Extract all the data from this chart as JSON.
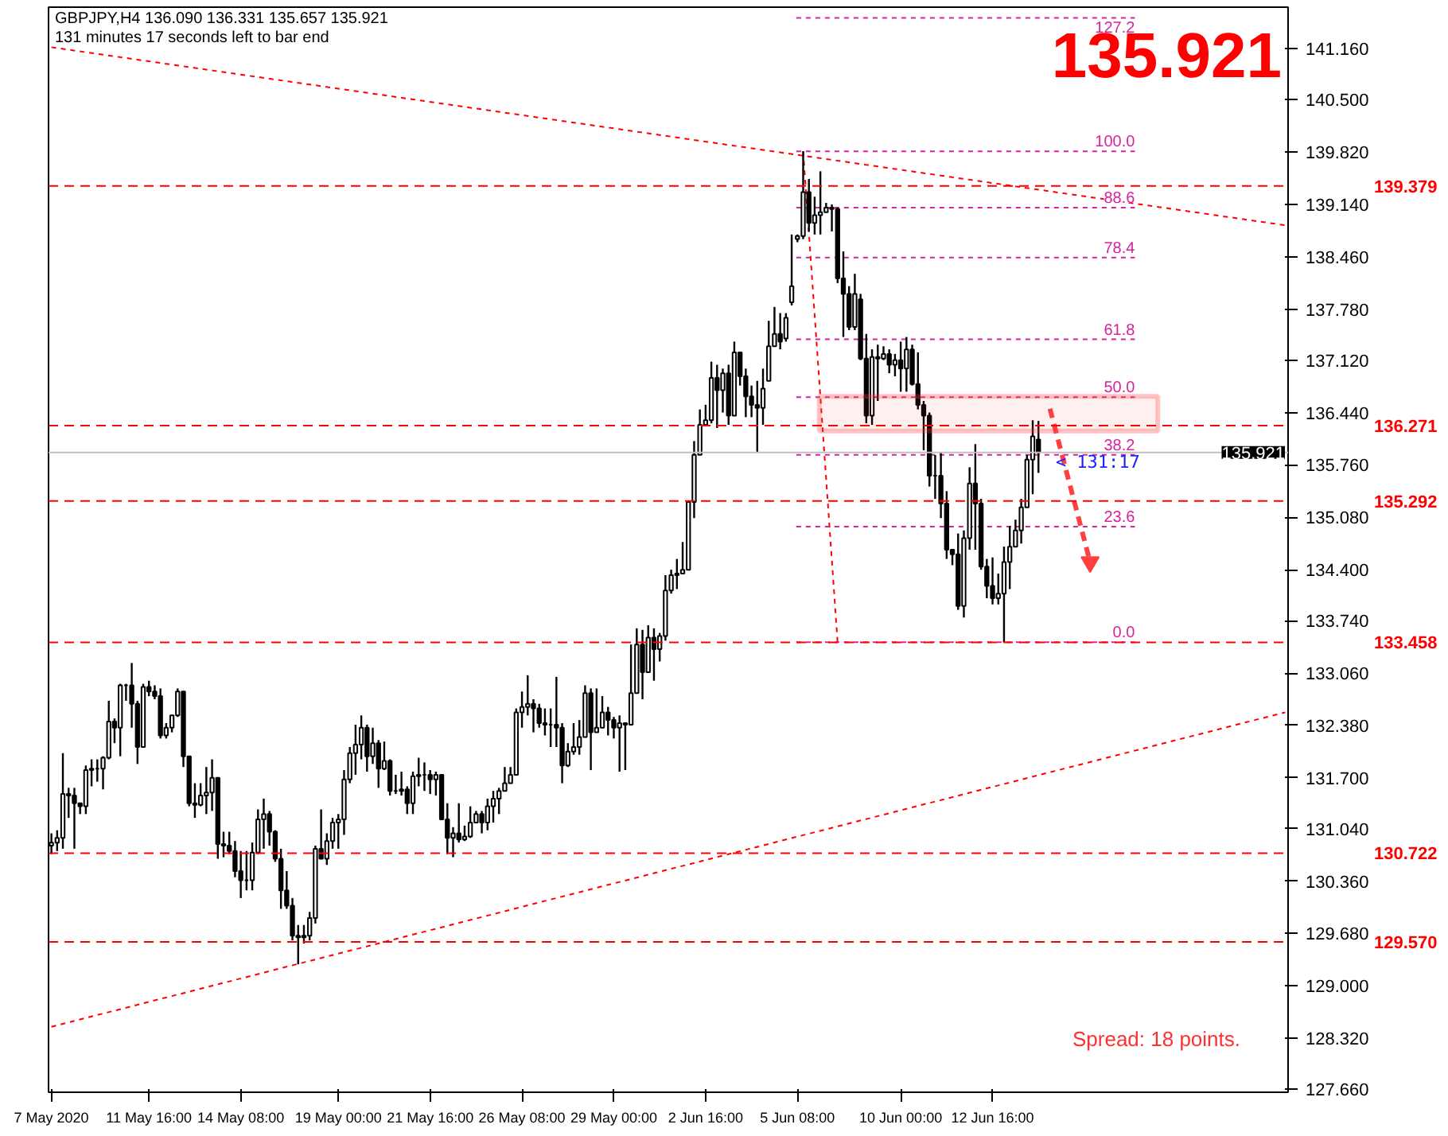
{
  "chart_data": {
    "type": "candlestick",
    "title": "GBPJPY,H4 136.090 136.331 135.657 135.921",
    "subtitle": "131 minutes 17 seconds left to bar end",
    "categories": [
      "7 May 2020",
      null,
      null,
      null,
      null,
      null,
      null,
      null,
      null,
      null,
      null,
      null,
      null,
      null,
      null,
      null,
      null,
      "11 May 16:00",
      null,
      null,
      null,
      null,
      null,
      null,
      null,
      null,
      null,
      null,
      null,
      null,
      null,
      null,
      null,
      "14 May 08:00",
      null,
      null,
      null,
      null,
      null,
      null,
      null,
      null,
      null,
      null,
      null,
      null,
      null,
      null,
      null,
      null,
      "19 May 00:00",
      null,
      null,
      null,
      null,
      null,
      null,
      null,
      null,
      null,
      null,
      null,
      null,
      null,
      null,
      null,
      "21 May 16:00",
      null,
      null,
      null,
      null,
      null,
      null,
      null,
      null,
      null,
      null,
      null,
      null,
      null,
      null,
      null,
      "26 May 08:00",
      null,
      null,
      null,
      null,
      null,
      null,
      null,
      null,
      null,
      null,
      null,
      null,
      null,
      null,
      null,
      "29 May 00:00",
      null,
      null,
      null,
      null,
      null,
      null,
      null,
      null,
      null,
      null,
      null,
      null,
      null,
      null,
      null,
      "2 Jun 16:00",
      null,
      null,
      null,
      null,
      null,
      null,
      null,
      null,
      null,
      null,
      null,
      null,
      null,
      null,
      null,
      "5 Jun 08:00",
      null,
      null,
      null,
      null,
      null,
      null,
      null,
      null,
      null,
      null,
      null,
      null,
      null,
      null,
      null,
      null,
      null,
      "10 Jun 00:00",
      null,
      null,
      null,
      null,
      null,
      null,
      null,
      null,
      null,
      null,
      null,
      null,
      null,
      null,
      null,
      "12 Jun 16:00",
      null,
      null,
      null,
      null,
      null,
      null,
      null,
      null,
      null,
      null,
      null,
      null,
      null,
      null,
      null,
      null,
      null,
      null,
      null,
      null,
      null,
      null,
      null,
      null,
      null,
      null,
      null,
      null,
      null,
      null,
      null,
      null,
      null,
      null,
      null,
      null,
      null,
      null,
      null,
      null,
      null,
      null,
      null,
      null,
      null,
      null,
      null,
      null,
      null,
      null,
      null
    ],
    "ohlc": [
      [
        130.82,
        130.98,
        130.71,
        130.86
      ],
      [
        130.86,
        131.02,
        130.75,
        130.92
      ],
      [
        130.92,
        132.02,
        130.78,
        131.49
      ],
      [
        131.49,
        131.57,
        131.18,
        131.47
      ],
      [
        131.47,
        131.57,
        130.78,
        131.37
      ],
      [
        131.37,
        131.37,
        131.23,
        131.33
      ],
      [
        131.33,
        131.86,
        131.23,
        131.8
      ],
      [
        131.8,
        131.94,
        131.59,
        131.82
      ],
      [
        131.82,
        131.94,
        131.65,
        131.82
      ],
      [
        131.82,
        131.98,
        131.55,
        131.96
      ],
      [
        131.96,
        132.7,
        131.94,
        132.43
      ],
      [
        132.43,
        132.47,
        132.15,
        132.35
      ],
      [
        132.35,
        132.92,
        131.98,
        132.9
      ],
      [
        132.9,
        132.92,
        132.7,
        132.9
      ],
      [
        132.9,
        133.19,
        132.35,
        132.66
      ],
      [
        132.66,
        132.7,
        131.88,
        132.1
      ],
      [
        132.1,
        132.92,
        132.1,
        132.88
      ],
      [
        132.88,
        132.96,
        132.76,
        132.82
      ],
      [
        132.82,
        132.9,
        132.72,
        132.76
      ],
      [
        132.76,
        132.86,
        132.21,
        132.25
      ],
      [
        132.25,
        132.41,
        132.21,
        132.35
      ],
      [
        132.35,
        132.51,
        132.29,
        132.51
      ],
      [
        132.51,
        132.86,
        132.49,
        132.82
      ],
      [
        132.82,
        132.82,
        131.84,
        131.98
      ],
      [
        131.98,
        131.98,
        131.33,
        131.37
      ],
      [
        131.37,
        131.63,
        131.18,
        131.35
      ],
      [
        131.35,
        131.63,
        131.33,
        131.47
      ],
      [
        131.47,
        131.84,
        131.23,
        131.51
      ],
      [
        131.51,
        131.94,
        131.27,
        131.7
      ],
      [
        131.7,
        131.7,
        130.65,
        130.84
      ],
      [
        130.84,
        131.0,
        130.67,
        130.82
      ],
      [
        130.82,
        131.0,
        130.71,
        130.75
      ],
      [
        130.75,
        130.88,
        130.41,
        130.49
      ],
      [
        130.49,
        130.75,
        130.14,
        130.37
      ],
      [
        130.37,
        130.75,
        130.24,
        130.37
      ],
      [
        130.37,
        130.86,
        130.24,
        130.73
      ],
      [
        130.73,
        131.29,
        130.71,
        131.16
      ],
      [
        131.16,
        131.43,
        130.78,
        131.23
      ],
      [
        131.23,
        131.27,
        130.82,
        131.0
      ],
      [
        131.0,
        131.02,
        130.61,
        130.65
      ],
      [
        130.65,
        130.78,
        130.0,
        130.24
      ],
      [
        130.24,
        130.49,
        130.0,
        130.04
      ],
      [
        130.04,
        130.14,
        129.59,
        129.65
      ],
      [
        129.65,
        129.79,
        129.28,
        129.63
      ],
      [
        129.63,
        129.79,
        129.55,
        129.65
      ],
      [
        129.65,
        129.96,
        129.59,
        129.88
      ],
      [
        129.88,
        130.82,
        129.81,
        130.78
      ],
      [
        130.78,
        131.29,
        130.65,
        130.65
      ],
      [
        130.65,
        130.98,
        130.57,
        130.88
      ],
      [
        130.88,
        131.18,
        130.78,
        131.12
      ],
      [
        131.12,
        131.23,
        130.78,
        131.16
      ],
      [
        131.16,
        131.8,
        130.96,
        131.68
      ],
      [
        131.68,
        132.1,
        131.63,
        132.02
      ],
      [
        132.02,
        132.39,
        131.74,
        132.13
      ],
      [
        132.13,
        132.51,
        131.94,
        132.35
      ],
      [
        132.35,
        132.39,
        131.78,
        131.98
      ],
      [
        131.98,
        132.35,
        131.88,
        132.15
      ],
      [
        132.15,
        132.19,
        131.57,
        131.82
      ],
      [
        131.82,
        132.17,
        131.8,
        131.92
      ],
      [
        131.92,
        131.94,
        131.47,
        131.53
      ],
      [
        131.53,
        131.74,
        131.49,
        131.53
      ],
      [
        131.53,
        131.78,
        131.47,
        131.55
      ],
      [
        131.55,
        131.59,
        131.23,
        131.37
      ],
      [
        131.37,
        131.78,
        131.23,
        131.72
      ],
      [
        131.72,
        131.96,
        131.59,
        131.74
      ],
      [
        131.74,
        131.9,
        131.53,
        131.74
      ],
      [
        131.74,
        131.8,
        131.49,
        131.68
      ],
      [
        131.68,
        131.78,
        131.47,
        131.74
      ],
      [
        131.74,
        131.74,
        131.16,
        131.16
      ],
      [
        131.16,
        131.37,
        130.71,
        130.92
      ],
      [
        130.92,
        131.06,
        130.67,
        130.98
      ],
      [
        130.98,
        131.37,
        130.86,
        130.9
      ],
      [
        130.9,
        131.08,
        130.88,
        130.94
      ],
      [
        130.94,
        131.33,
        130.92,
        131.12
      ],
      [
        131.12,
        131.27,
        131.12,
        131.23
      ],
      [
        131.23,
        131.27,
        130.98,
        131.12
      ],
      [
        131.12,
        131.43,
        131.02,
        131.33
      ],
      [
        131.33,
        131.53,
        131.12,
        131.43
      ],
      [
        131.43,
        131.57,
        131.23,
        131.53
      ],
      [
        131.53,
        131.84,
        131.53,
        131.63
      ],
      [
        131.63,
        131.84,
        131.63,
        131.74
      ],
      [
        131.74,
        132.6,
        131.74,
        132.55
      ],
      [
        132.55,
        132.82,
        132.35,
        132.62
      ],
      [
        132.62,
        133.03,
        132.51,
        132.66
      ],
      [
        132.66,
        132.72,
        132.29,
        132.6
      ],
      [
        132.6,
        132.66,
        132.35,
        132.41
      ],
      [
        132.41,
        132.6,
        132.25,
        132.39
      ],
      [
        132.39,
        132.6,
        132.1,
        132.39
      ],
      [
        132.39,
        133.01,
        132.1,
        132.35
      ],
      [
        132.35,
        132.41,
        131.63,
        131.86
      ],
      [
        131.86,
        132.15,
        131.84,
        132.04
      ],
      [
        132.04,
        132.41,
        132.0,
        132.1
      ],
      [
        132.1,
        132.45,
        132.0,
        132.23
      ],
      [
        132.23,
        132.9,
        132.23,
        132.8
      ],
      [
        132.8,
        132.86,
        131.8,
        132.29
      ],
      [
        132.29,
        132.86,
        132.29,
        132.35
      ],
      [
        132.35,
        132.76,
        132.35,
        132.55
      ],
      [
        132.55,
        132.62,
        132.25,
        132.45
      ],
      [
        132.45,
        132.49,
        132.21,
        132.35
      ],
      [
        132.35,
        132.51,
        131.78,
        132.41
      ],
      [
        132.41,
        132.41,
        131.8,
        132.39
      ],
      [
        132.39,
        133.43,
        132.39,
        132.8
      ],
      [
        132.8,
        133.64,
        132.8,
        133.43
      ],
      [
        133.43,
        133.62,
        132.72,
        133.07
      ],
      [
        133.07,
        133.68,
        133.07,
        133.52
      ],
      [
        133.52,
        133.64,
        132.96,
        133.37
      ],
      [
        133.37,
        133.58,
        133.21,
        133.54
      ],
      [
        133.54,
        134.33,
        133.48,
        134.13
      ],
      [
        134.13,
        134.4,
        134.09,
        134.33
      ],
      [
        134.33,
        134.54,
        134.15,
        134.35
      ],
      [
        134.35,
        134.76,
        134.35,
        134.4
      ],
      [
        134.4,
        135.28,
        134.4,
        135.28
      ],
      [
        135.28,
        136.07,
        135.07,
        135.89
      ],
      [
        135.89,
        136.48,
        135.89,
        136.28
      ],
      [
        136.28,
        136.54,
        136.28,
        136.34
      ],
      [
        136.34,
        137.1,
        136.3,
        136.89
      ],
      [
        136.89,
        137.06,
        136.24,
        136.73
      ],
      [
        136.73,
        137.01,
        136.44,
        136.95
      ],
      [
        136.95,
        137.06,
        136.28,
        136.4
      ],
      [
        136.4,
        137.36,
        136.4,
        137.22
      ],
      [
        137.22,
        137.22,
        136.79,
        136.91
      ],
      [
        136.91,
        137.01,
        136.38,
        136.65
      ],
      [
        136.65,
        136.79,
        136.38,
        136.54
      ],
      [
        136.54,
        136.85,
        135.93,
        136.5
      ],
      [
        136.5,
        137.01,
        136.28,
        136.75
      ],
      [
        136.85,
        137.63,
        136.85,
        137.3
      ],
      [
        137.3,
        137.81,
        137.3,
        137.46
      ],
      [
        137.46,
        137.73,
        137.26,
        137.36
      ],
      [
        137.4,
        137.73,
        137.36,
        137.67
      ],
      [
        137.87,
        138.75,
        137.83,
        138.08
      ],
      [
        138.69,
        138.75,
        138.65,
        138.73
      ],
      [
        138.73,
        139.83,
        138.69,
        139.3
      ],
      [
        139.3,
        139.47,
        138.79,
        138.9
      ],
      [
        138.9,
        139.24,
        138.75,
        139.0
      ],
      [
        139.0,
        139.57,
        138.75,
        139.04
      ],
      [
        139.04,
        139.16,
        139.04,
        139.1
      ],
      [
        139.1,
        139.14,
        138.79,
        139.08
      ],
      [
        139.08,
        139.1,
        138.12,
        138.18
      ],
      [
        138.18,
        138.53,
        137.42,
        137.98
      ],
      [
        137.98,
        138.08,
        137.51,
        137.55
      ],
      [
        137.55,
        138.24,
        137.51,
        137.98
      ],
      [
        137.91,
        137.98,
        137.12,
        137.14
      ],
      [
        137.14,
        137.46,
        136.3,
        136.4
      ],
      [
        136.4,
        137.26,
        136.28,
        137.16
      ],
      [
        137.16,
        137.32,
        136.59,
        137.14
      ],
      [
        137.14,
        137.3,
        137.12,
        137.2
      ],
      [
        137.2,
        137.26,
        136.95,
        137.06
      ],
      [
        137.06,
        137.2,
        136.91,
        137.12
      ],
      [
        137.12,
        137.36,
        136.71,
        137.01
      ],
      [
        137.01,
        137.42,
        136.71,
        137.26
      ],
      [
        137.26,
        137.32,
        136.79,
        136.81
      ],
      [
        136.81,
        137.22,
        136.48,
        136.54
      ],
      [
        136.54,
        136.59,
        135.95,
        136.4
      ],
      [
        136.4,
        136.44,
        135.48,
        135.62
      ],
      [
        135.62,
        135.89,
        135.32,
        135.62
      ],
      [
        135.62,
        135.93,
        135.07,
        135.26
      ],
      [
        135.26,
        135.42,
        134.54,
        134.66
      ],
      [
        134.66,
        134.66,
        134.46,
        134.6
      ],
      [
        134.6,
        134.87,
        133.88,
        133.93
      ],
      [
        133.93,
        134.91,
        133.78,
        134.81
      ],
      [
        134.81,
        135.73,
        134.66,
        135.52
      ],
      [
        135.52,
        136.03,
        134.66,
        135.26
      ],
      [
        135.26,
        135.32,
        134.4,
        134.44
      ],
      [
        134.44,
        134.54,
        134.03,
        134.19
      ],
      [
        134.19,
        134.56,
        133.95,
        134.03
      ],
      [
        134.03,
        134.35,
        133.95,
        134.09
      ],
      [
        134.09,
        134.7,
        133.458,
        134.5
      ],
      [
        134.5,
        134.97,
        134.15,
        134.7
      ],
      [
        134.7,
        135.05,
        134.7,
        134.91
      ],
      [
        134.91,
        135.32,
        134.74,
        135.21
      ],
      [
        135.21,
        135.89,
        135.21,
        135.83
      ],
      [
        135.83,
        136.34,
        135.38,
        136.13
      ],
      [
        136.09,
        136.331,
        135.657,
        135.921
      ],
      null,
      null,
      null,
      null,
      null,
      null,
      null,
      null,
      null,
      null,
      null,
      null,
      null,
      null,
      null,
      null,
      null,
      null,
      null,
      null,
      null,
      null,
      null,
      null,
      null,
      null,
      null,
      null,
      null,
      null,
      null,
      null,
      null,
      null,
      null,
      null,
      null,
      null,
      null,
      null,
      null,
      null,
      null
    ],
    "series": [
      {
        "type": "line",
        "color": "#ff0000",
        "line_style": "dotted",
        "values": [
          141.18,
          null,
          null,
          null,
          null,
          null,
          null,
          null,
          null,
          null,
          null,
          null,
          null,
          null,
          null,
          null,
          null,
          null,
          null,
          null,
          null,
          null,
          null,
          null,
          null,
          null,
          null,
          null,
          null,
          null,
          null,
          null,
          null,
          null,
          null,
          null,
          null,
          null,
          null,
          null,
          null,
          null,
          null,
          null,
          null,
          null,
          null,
          null,
          null,
          null,
          null,
          null,
          null,
          null,
          null,
          null,
          null,
          null,
          null,
          null,
          null,
          null,
          null,
          null,
          null,
          null,
          null,
          null,
          null,
          null,
          null,
          null,
          null,
          null,
          null,
          null,
          null,
          null,
          null,
          null,
          null,
          null,
          null,
          null,
          null,
          null,
          null,
          null,
          null,
          null,
          null,
          null,
          null,
          null,
          null,
          null,
          null,
          null,
          null,
          null,
          null,
          null,
          null,
          null,
          null,
          null,
          null,
          null,
          null,
          null,
          null,
          null,
          null,
          null,
          null,
          null,
          null,
          null,
          null,
          null,
          null,
          null,
          null,
          null,
          null,
          null,
          null,
          null,
          null,
          null,
          null,
          null,
          null,
          null,
          null,
          null,
          null,
          null,
          null,
          null,
          null,
          null,
          null,
          null,
          null,
          null,
          null,
          null,
          null,
          null,
          null,
          null,
          null,
          null,
          null,
          null,
          null,
          null,
          null,
          null,
          null,
          null,
          null,
          null,
          null,
          null,
          null,
          null,
          null,
          null,
          null,
          null,
          null,
          null,
          null,
          null,
          null,
          null,
          null,
          null,
          null,
          null,
          null,
          null,
          null,
          null,
          null,
          null,
          null,
          null,
          null,
          null,
          null,
          null,
          null,
          null,
          null,
          null,
          null,
          null,
          null,
          null,
          null,
          null,
          null,
          null,
          null,
          null,
          null,
          null,
          null,
          null,
          null,
          null,
          null,
          138.87
        ]
      },
      {
        "type": "line",
        "color": "#ff0000",
        "line_style": "dotted",
        "values": [
          128.47,
          null,
          null,
          null,
          null,
          null,
          null,
          null,
          null,
          null,
          null,
          null,
          null,
          null,
          null,
          null,
          null,
          null,
          null,
          null,
          null,
          null,
          null,
          null,
          null,
          null,
          null,
          null,
          null,
          null,
          null,
          null,
          null,
          null,
          null,
          null,
          null,
          null,
          null,
          null,
          null,
          null,
          null,
          null,
          null,
          null,
          null,
          null,
          null,
          null,
          null,
          null,
          null,
          null,
          null,
          null,
          null,
          null,
          null,
          null,
          null,
          null,
          null,
          null,
          null,
          null,
          null,
          null,
          null,
          null,
          null,
          null,
          null,
          null,
          null,
          null,
          null,
          null,
          null,
          null,
          null,
          null,
          null,
          null,
          null,
          null,
          null,
          null,
          null,
          null,
          null,
          null,
          null,
          null,
          null,
          null,
          null,
          null,
          null,
          null,
          null,
          null,
          null,
          null,
          null,
          null,
          null,
          null,
          null,
          null,
          null,
          null,
          null,
          null,
          null,
          null,
          null,
          null,
          null,
          null,
          null,
          null,
          null,
          null,
          null,
          null,
          null,
          null,
          null,
          null,
          null,
          null,
          null,
          null,
          null,
          null,
          null,
          null,
          null,
          null,
          null,
          null,
          null,
          null,
          null,
          null,
          null,
          null,
          null,
          null,
          null,
          null,
          null,
          null,
          null,
          null,
          null,
          null,
          null,
          null,
          null,
          null,
          null,
          null,
          null,
          null,
          null,
          null,
          null,
          null,
          null,
          null,
          null,
          null,
          null,
          null,
          null,
          null,
          null,
          null,
          null,
          null,
          null,
          null,
          null,
          null,
          null,
          null,
          null,
          null,
          null,
          null,
          null,
          null,
          null,
          null,
          null,
          null,
          null,
          null,
          null,
          null,
          null,
          null,
          null,
          null,
          null,
          null,
          null,
          null,
          null,
          null,
          null,
          null,
          null,
          132.55
        ]
      },
      {
        "type": "line",
        "color": "#ff0000",
        "line_style": "dotted",
        "values": [
          null,
          null,
          null,
          null,
          null,
          null,
          null,
          null,
          null,
          null,
          null,
          null,
          null,
          null,
          null,
          null,
          null,
          null,
          null,
          null,
          null,
          null,
          null,
          null,
          null,
          null,
          null,
          null,
          null,
          null,
          null,
          null,
          null,
          null,
          null,
          null,
          null,
          null,
          null,
          null,
          null,
          null,
          null,
          null,
          null,
          null,
          null,
          null,
          null,
          null,
          null,
          null,
          null,
          null,
          null,
          null,
          null,
          null,
          null,
          null,
          null,
          null,
          null,
          null,
          null,
          null,
          null,
          null,
          null,
          null,
          null,
          null,
          null,
          null,
          null,
          null,
          null,
          null,
          null,
          null,
          null,
          null,
          null,
          null,
          null,
          null,
          null,
          null,
          null,
          null,
          null,
          null,
          null,
          null,
          null,
          null,
          null,
          null,
          null,
          null,
          null,
          null,
          null,
          null,
          null,
          null,
          null,
          null,
          null,
          null,
          null,
          null,
          null,
          null,
          null,
          null,
          null,
          null,
          null,
          null,
          null,
          null,
          null,
          null,
          null,
          null,
          null,
          null,
          null,
          null,
          null,
          139.83,
          null,
          null,
          null,
          null,
          null,
          133.46,
          null,
          null,
          null,
          null,
          null,
          null,
          null,
          null,
          null,
          null,
          null,
          null,
          null,
          null,
          null,
          null,
          null,
          null,
          null,
          null,
          null,
          null,
          null,
          null,
          null,
          null,
          null,
          null,
          null,
          null,
          null,
          null,
          null,
          null,
          null,
          null,
          null,
          null,
          null,
          null,
          null,
          null,
          null,
          null,
          null,
          null,
          null,
          null,
          null,
          null,
          null,
          null,
          null,
          null,
          null,
          null,
          null,
          null,
          null,
          null,
          null,
          null,
          null,
          null,
          null,
          null,
          null,
          null,
          null,
          null,
          null,
          null,
          null,
          null,
          null,
          null,
          null,
          null
        ]
      },
      {
        "type": "line",
        "color": "#ff4040",
        "line_style": "dashed",
        "values": [
          null,
          null,
          null,
          null,
          null,
          null,
          null,
          null,
          null,
          null,
          null,
          null,
          null,
          null,
          null,
          null,
          null,
          null,
          null,
          null,
          null,
          null,
          null,
          null,
          null,
          null,
          null,
          null,
          null,
          null,
          null,
          null,
          null,
          null,
          null,
          null,
          null,
          null,
          null,
          null,
          null,
          null,
          null,
          null,
          null,
          null,
          null,
          null,
          null,
          null,
          null,
          null,
          null,
          null,
          null,
          null,
          null,
          null,
          null,
          null,
          null,
          null,
          null,
          null,
          null,
          null,
          null,
          null,
          null,
          null,
          null,
          null,
          null,
          null,
          null,
          null,
          null,
          null,
          null,
          null,
          null,
          null,
          null,
          null,
          null,
          null,
          null,
          null,
          null,
          null,
          null,
          null,
          null,
          null,
          null,
          null,
          null,
          null,
          null,
          null,
          null,
          null,
          null,
          null,
          null,
          null,
          null,
          null,
          null,
          null,
          null,
          null,
          null,
          null,
          null,
          null,
          null,
          null,
          null,
          null,
          null,
          null,
          null,
          null,
          null,
          null,
          null,
          null,
          null,
          null,
          null,
          null,
          null,
          null,
          null,
          null,
          null,
          null,
          null,
          null,
          null,
          null,
          null,
          null,
          null,
          null,
          null,
          null,
          null,
          null,
          null,
          null,
          null,
          null,
          null,
          null,
          null,
          null,
          null,
          null,
          null,
          null,
          null,
          null,
          null,
          null,
          null,
          null,
          null,
          null,
          null,
          null,
          null,
          null,
          136.49,
          null,
          null,
          null,
          null,
          null,
          null,
          134.5,
          null,
          null,
          null,
          null,
          null,
          null,
          null,
          null,
          null,
          null,
          null,
          null,
          null,
          null,
          null,
          null,
          null,
          null,
          null,
          null,
          null,
          null,
          null,
          null,
          null,
          null,
          null,
          null,
          null,
          null,
          null,
          null,
          null,
          null
        ]
      }
    ],
    "ylim": [
      127.62,
      141.7
    ],
    "yticks": [
      {
        "value": 127.66,
        "label": "127.660"
      },
      {
        "value": 128.32,
        "label": "128.320"
      },
      {
        "value": 129.0,
        "label": "129.000"
      },
      {
        "value": 129.68,
        "label": "129.680"
      },
      {
        "value": 130.36,
        "label": "130.360"
      },
      {
        "value": 131.04,
        "label": "131.040"
      },
      {
        "value": 131.7,
        "label": "131.700"
      },
      {
        "value": 132.38,
        "label": "132.380"
      },
      {
        "value": 133.06,
        "label": "133.060"
      },
      {
        "value": 133.74,
        "label": "133.740"
      },
      {
        "value": 134.4,
        "label": "134.400"
      },
      {
        "value": 135.08,
        "label": "135.080"
      },
      {
        "value": 135.76,
        "label": "135.760"
      },
      {
        "value": 136.44,
        "label": "136.440"
      },
      {
        "value": 137.12,
        "label": "137.120"
      },
      {
        "value": 137.78,
        "label": "137.780"
      },
      {
        "value": 138.46,
        "label": "138.460"
      },
      {
        "value": 139.14,
        "label": "139.140"
      },
      {
        "value": 139.82,
        "label": "139.820"
      },
      {
        "value": 140.5,
        "label": "140.500"
      },
      {
        "value": 141.16,
        "label": "141.160"
      }
    ],
    "ref_lines": [
      {
        "axis": "y",
        "value": 139.379,
        "label": "139.379",
        "color": "#ff0000",
        "line_style": "dashed"
      },
      {
        "axis": "y",
        "value": 136.271,
        "label": "136.271",
        "color": "#ff0000",
        "line_style": "dashed"
      },
      {
        "axis": "y",
        "value": 135.292,
        "label": "135.292",
        "color": "#ff0000",
        "line_style": "dashed"
      },
      {
        "axis": "y",
        "value": 133.458,
        "label": "133.458",
        "color": "#ff0000",
        "line_style": "dashed"
      },
      {
        "axis": "y",
        "value": 130.722,
        "label": "130.722",
        "color": "#ff0000",
        "line_style": "dashed"
      },
      {
        "axis": "y",
        "value": 129.57,
        "label": "129.570",
        "color": "#ff0000",
        "line_style": "dashed"
      },
      {
        "axis": "y",
        "value": 135.921,
        "label": "135.921",
        "color": "#c0c0c0",
        "line_style": "solid"
      },
      {
        "axis": "y",
        "value": 133.46,
        "color": "#d6249f",
        "line_style": "dotted"
      },
      {
        "axis": "y",
        "value": 134.96,
        "color": "#d6249f",
        "line_style": "dotted"
      },
      {
        "axis": "y",
        "value": 135.89,
        "color": "#d6249f",
        "line_style": "dotted"
      },
      {
        "axis": "y",
        "value": 136.64,
        "color": "#d6249f",
        "line_style": "dotted"
      },
      {
        "axis": "y",
        "value": 137.39,
        "color": "#d6249f",
        "line_style": "dotted"
      },
      {
        "axis": "y",
        "value": 138.45,
        "color": "#d6249f",
        "line_style": "dotted"
      },
      {
        "axis": "y",
        "value": 139.1,
        "color": "#d6249f",
        "line_style": "dotted"
      },
      {
        "axis": "y",
        "value": 139.83,
        "color": "#d6249f",
        "line_style": "dotted"
      },
      {
        "axis": "y",
        "value": 141.56,
        "color": "#d6249f",
        "line_style": "dotted"
      }
    ],
    "bands": [
      {
        "axis": "y",
        "from": 136.2,
        "to": 136.65,
        "color": "#ff4040"
      }
    ],
    "annotations": [
      "135.921",
      "< 131:17",
      "Spread: 18 points.",
      {
        "text": "0.0",
        "y": 133.46
      },
      {
        "text": "23.6",
        "y": 134.96
      },
      {
        "text": "38.2",
        "y": 135.89
      },
      {
        "text": "50.0",
        "y": 136.64
      },
      {
        "text": "61.8",
        "y": 137.39
      },
      {
        "text": "78.4",
        "y": 138.45
      },
      {
        "text": "88.6",
        "y": 139.1
      },
      {
        "text": "100.0",
        "y": 139.83
      },
      {
        "text": "127.2",
        "y": 141.56
      }
    ]
  }
}
